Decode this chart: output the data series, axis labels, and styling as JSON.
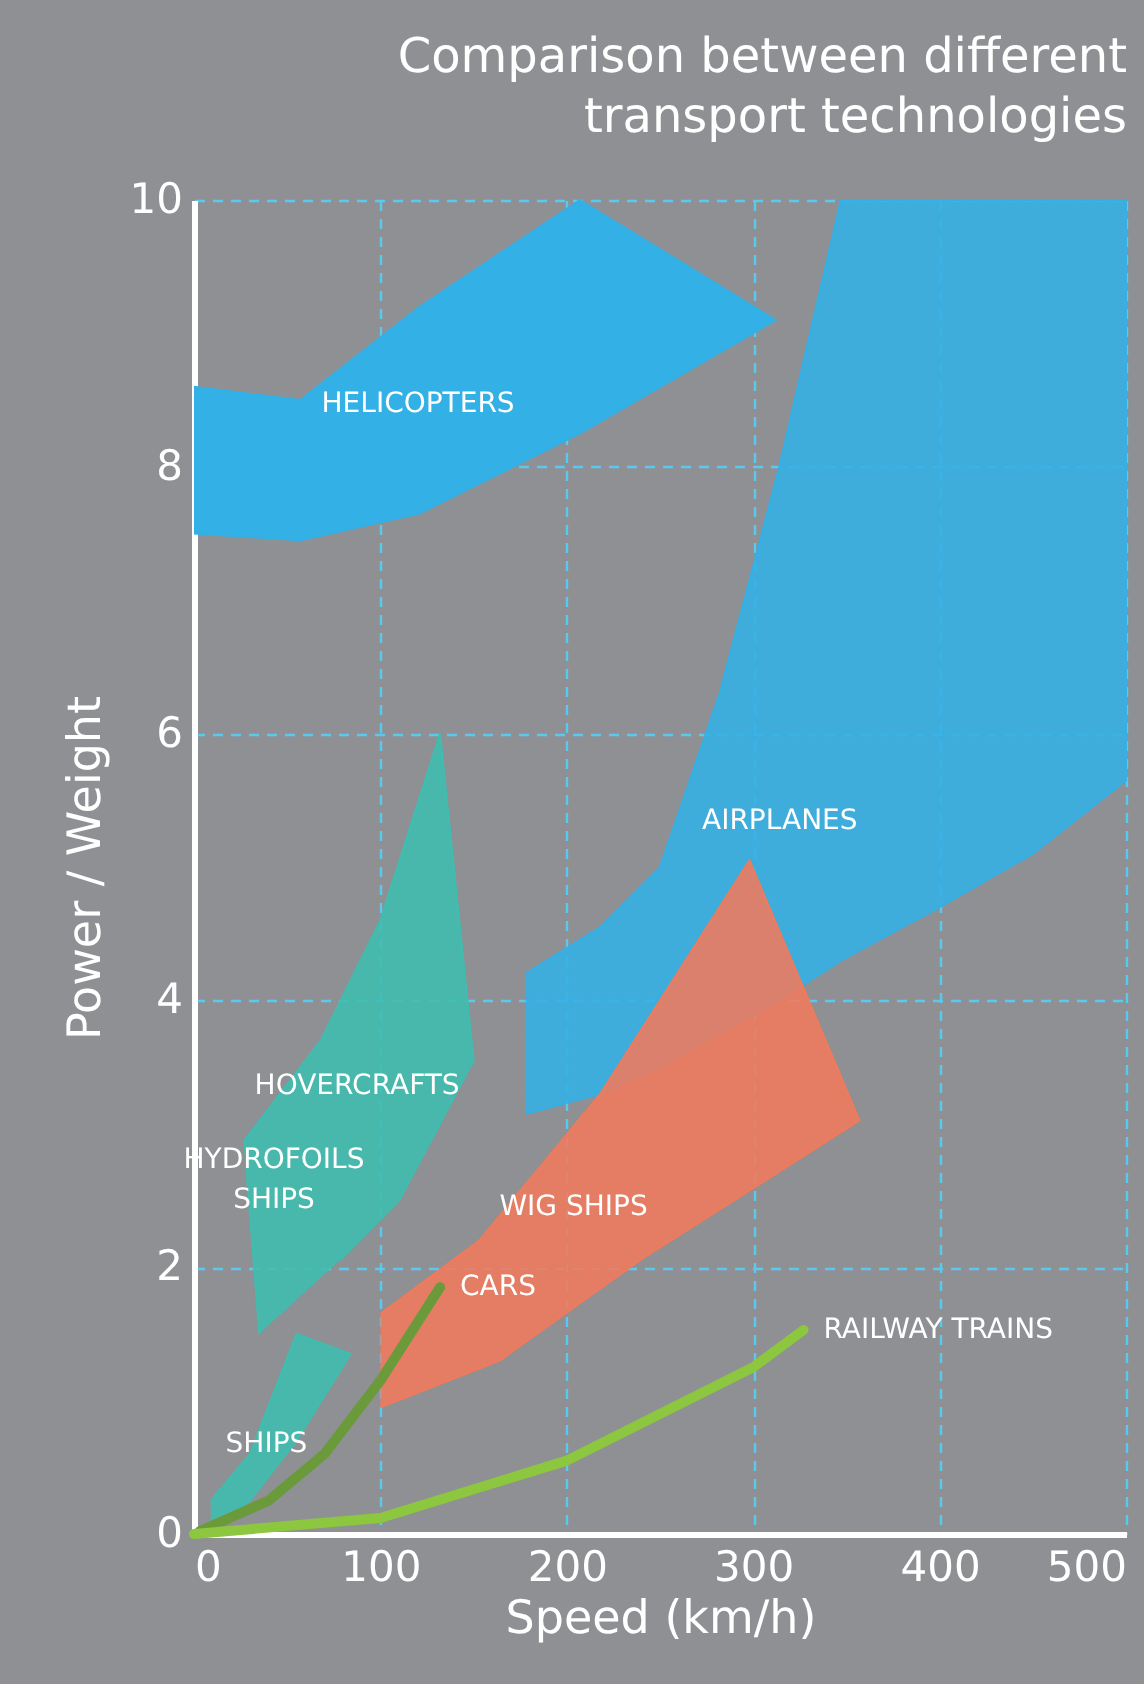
{
  "chart_data": {
    "type": "area",
    "title": "Comparison between different transport technologies",
    "xlabel": "Speed (km/h)",
    "ylabel": "Power / Weight",
    "xlim": [
      0,
      500
    ],
    "xticks": [
      0,
      100,
      200,
      300,
      400,
      500
    ],
    "ylim": [
      0,
      10
    ],
    "yticks": [
      0,
      2,
      4,
      6,
      8,
      10
    ],
    "grid": true,
    "series": [
      {
        "name": "HELICOPTERS",
        "color": "#33b0e6",
        "x": [
          0,
          57,
          121,
          207,
          312,
          207,
          121,
          57,
          0
        ],
        "values": [
          8.6,
          8.5,
          9.2,
          10,
          9.1,
          8.25,
          7.65,
          7.45,
          7.5
        ]
      },
      {
        "name": "AIRPLANES",
        "color": "#33b0e6",
        "x": [
          178,
          218,
          250,
          282,
          314,
          347,
          500,
          500,
          450,
          400,
          347,
          314,
          282,
          250,
          218,
          178
        ],
        "values": [
          4.2,
          4.55,
          5.0,
          6.3,
          8.0,
          10,
          10,
          5.65,
          5.1,
          4.7,
          4.3,
          4.0,
          3.75,
          3.5,
          3.3,
          3.15
        ]
      },
      {
        "name": "HOVERCRAFTS",
        "color": "#3fbdb0",
        "x": [
          35,
          27,
          68,
          100,
          132,
          150,
          110,
          78
        ],
        "values": [
          1.5,
          2.95,
          3.7,
          4.6,
          6.0,
          3.55,
          2.5,
          2.05
        ]
      },
      {
        "name": "SHIPS",
        "color": "#3fbdb0",
        "x": [
          9,
          30,
          55,
          84,
          55,
          30,
          9
        ],
        "values": [
          0.25,
          0.6,
          1.5,
          1.35,
          0.7,
          0.25,
          0.05
        ]
      },
      {
        "name": "WIG SHIPS",
        "color": "#f07a5c",
        "x": [
          100,
          153,
          218,
          298,
          357,
          239,
          164,
          100
        ],
        "values": [
          1.65,
          2.2,
          3.3,
          5.05,
          3.1,
          2.05,
          1.3,
          0.95
        ]
      },
      {
        "name": "CARS",
        "type": "line",
        "color": "#6a9a3a",
        "x": [
          3,
          40,
          70,
          100,
          132
        ],
        "values": [
          0.02,
          0.25,
          0.6,
          1.15,
          1.85
        ]
      },
      {
        "name": "RAILWAY   TRAINS",
        "type": "line",
        "color": "#8dc63f",
        "x": [
          0,
          100,
          200,
          300,
          327
        ],
        "values": [
          0,
          0.12,
          0.55,
          1.25,
          1.53
        ]
      }
    ],
    "annotations": [
      "HYDROFOILS SHIPS"
    ]
  }
}
